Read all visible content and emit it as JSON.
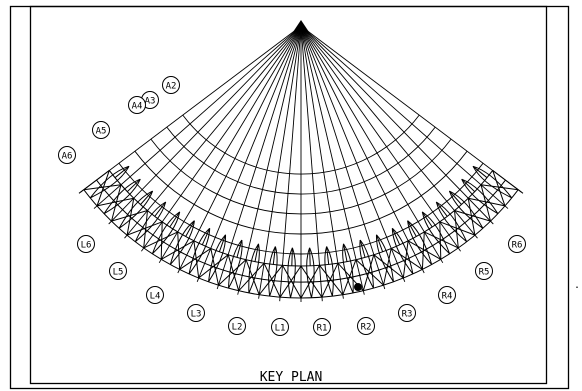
{
  "drawing": {
    "title": "KEY PLAN",
    "line_color": "#000000",
    "background_color": "#ffffff",
    "arc_labels": [
      "A2",
      "A3",
      "A4",
      "A5",
      "A6"
    ],
    "left_labels": [
      "L1",
      "L2",
      "L3",
      "L4",
      "L5",
      "L6"
    ],
    "right_labels": [
      "R1",
      "R2",
      "R3",
      "R4",
      "R5",
      "R6"
    ],
    "edge_mark": "."
  }
}
